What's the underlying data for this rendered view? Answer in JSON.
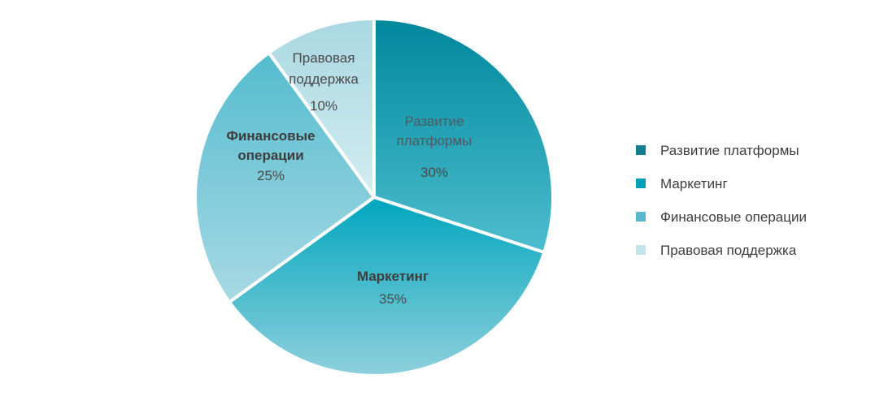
{
  "chart_data": {
    "type": "pie",
    "title": "",
    "start_angle_deg": 0,
    "direction": "clockwise",
    "legend_position": "right",
    "slices": [
      {
        "label": "Развитие платформы",
        "label_lines": [
          "Развитие",
          "платформы"
        ],
        "value": 30,
        "pct_label": "30%",
        "legend": "Развитие платформы",
        "color_dark": "#00879c",
        "color_light": "#4dbecf",
        "legend_color": "#127f93"
      },
      {
        "label": "Маркетинг",
        "label_lines": [
          "Маркетинг"
        ],
        "value": 35,
        "pct_label": "35%",
        "legend": "Маркетинг",
        "color_dark": "#00a6be",
        "color_light": "#8fd0dc",
        "legend_color": "#00a0b7"
      },
      {
        "label": "Финансовые операции",
        "label_lines": [
          "Финансовые",
          "операции"
        ],
        "value": 25,
        "pct_label": "25%",
        "legend": "Финансовые операции",
        "color_dark": "#55bccf",
        "color_light": "#a7d9e3",
        "legend_color": "#58b8cc"
      },
      {
        "label": "Правовая поддержка",
        "label_lines": [
          "Правовая",
          "поддержка"
        ],
        "value": 10,
        "pct_label": "10%",
        "legend": "Правовая поддержка",
        "color_dark": "#a9d8e2",
        "color_light": "#d3ecf1",
        "legend_color": "#c4e4ec"
      }
    ]
  }
}
